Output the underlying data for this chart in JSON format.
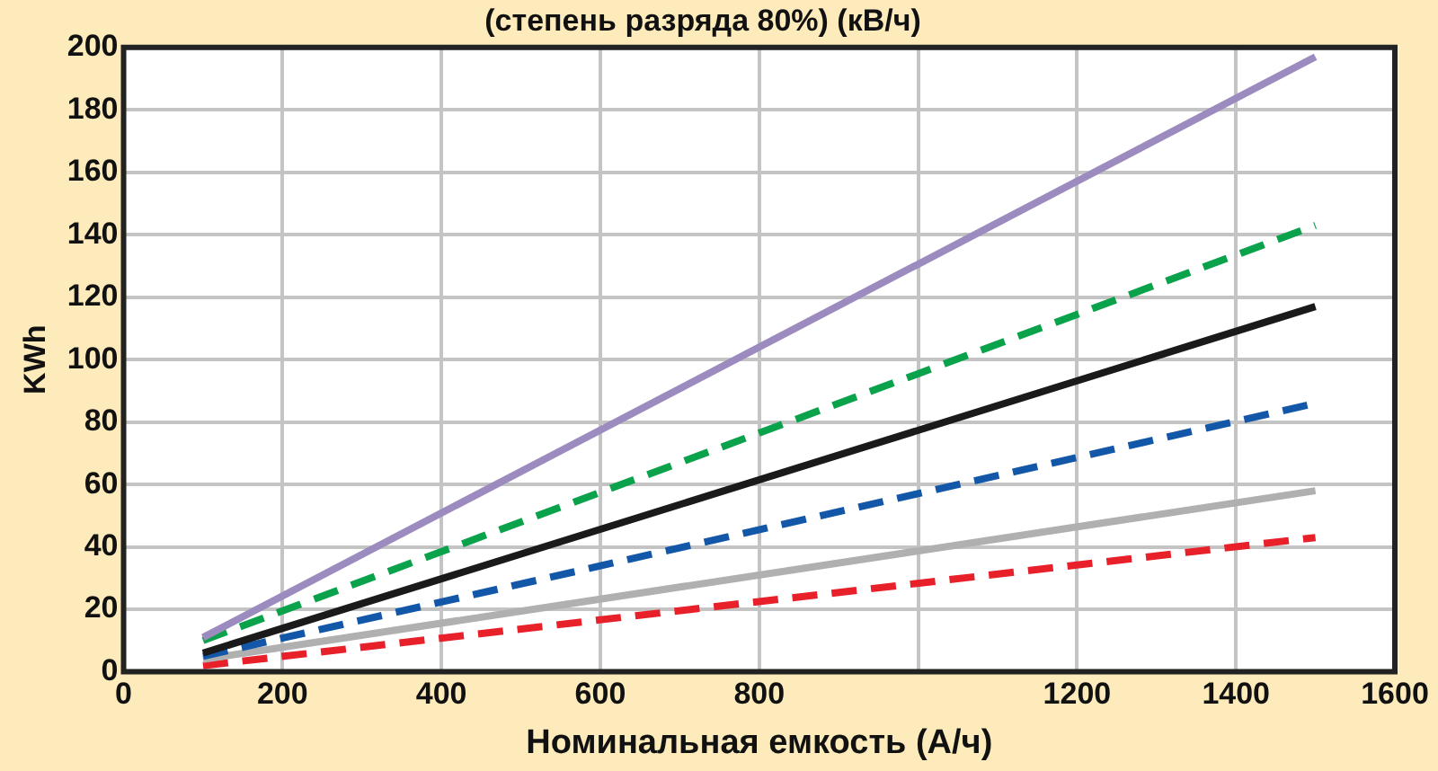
{
  "chart_data": {
    "type": "line",
    "title": "(степень разряда 80%) (кВ/ч)",
    "xlabel": "Номинальная емкость (А/ч)",
    "ylabel": "KWh",
    "x": [
      100,
      1500
    ],
    "series": [
      {
        "color": "#9b8bbf",
        "values": [
          11,
          197
        ],
        "line_style": "solid"
      },
      {
        "color": "#0aa24a",
        "values": [
          10,
          143
        ],
        "line_style": "dashed"
      },
      {
        "color": "#1a1a1a",
        "values": [
          6,
          117
        ],
        "line_style": "solid"
      },
      {
        "color": "#1257a8",
        "values": [
          5,
          86
        ],
        "line_style": "dashed"
      },
      {
        "color": "#b0b0b0",
        "values": [
          4,
          58
        ],
        "line_style": "solid"
      },
      {
        "color": "#e8202a",
        "values": [
          2,
          43
        ],
        "line_style": "dashed"
      }
    ],
    "xlim": [
      0,
      1600
    ],
    "xticks": [
      0,
      200,
      400,
      600,
      800,
      {
        "value": 1000,
        "label": null
      },
      1200,
      1400,
      1600
    ],
    "ylim": [
      0,
      200
    ],
    "yticks": [
      0,
      20,
      40,
      60,
      80,
      100,
      120,
      140,
      160,
      180,
      200
    ],
    "grid": true,
    "legend": false,
    "marker": "none"
  }
}
